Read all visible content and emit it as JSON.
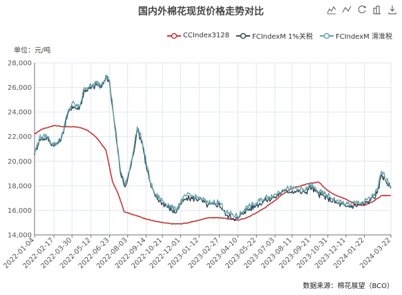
{
  "toolbox": {
    "icons": [
      "data-view-icon",
      "line-switch-icon",
      "restore-icon",
      "bar-switch-icon",
      "save-image-icon"
    ]
  },
  "unit_label": "单位：元/吨",
  "source_label": "数据来源：棉花展望（BCO）",
  "chart_data": {
    "type": "line",
    "title": "国内外棉花现货价格走势对比",
    "xlabel": "",
    "ylabel": "",
    "ylim": [
      14000,
      28000
    ],
    "y_ticks": [
      14000,
      16000,
      18000,
      20000,
      22000,
      24000,
      26000,
      28000
    ],
    "y_tick_labels": [
      "14,000",
      "16,000",
      "18,000",
      "20,000",
      "22,000",
      "24,000",
      "26,000",
      "28,000"
    ],
    "x_range": [
      "2022-01-04",
      "2024-03-22"
    ],
    "x_tick_labels": [
      "2022-01-04",
      "2022-02-17",
      "2022-03-30",
      "2022-05-12",
      "2022-06-23",
      "2022-08-03",
      "2022-09-14",
      "2022-10-21",
      "2022-12-01",
      "2023-01-12",
      "2023-02-27",
      "2023-04-10",
      "2023-05-22",
      "2023-07-03",
      "2023-08-11",
      "2023-09-21",
      "2023-10-31",
      "2023-12-11",
      "2024-01-22",
      "2024-03-22"
    ],
    "grid": true,
    "legend_position": "top-right",
    "series": [
      {
        "name": "CCIndex3128",
        "color": "#c23531",
        "x": [
          "2022-01-04",
          "2022-01-20",
          "2022-02-17",
          "2022-03-15",
          "2022-04-10",
          "2022-05-05",
          "2022-05-25",
          "2022-06-15",
          "2022-06-30",
          "2022-07-12",
          "2022-07-20",
          "2022-07-26",
          "2022-08-03",
          "2022-08-20",
          "2022-09-14",
          "2022-10-05",
          "2022-10-21",
          "2022-11-10",
          "2022-12-01",
          "2022-12-20",
          "2023-01-12",
          "2023-02-01",
          "2023-02-27",
          "2023-03-20",
          "2023-04-10",
          "2023-05-01",
          "2023-05-22",
          "2023-06-10",
          "2023-07-03",
          "2023-07-20",
          "2023-08-11",
          "2023-09-01",
          "2023-09-21",
          "2023-10-10",
          "2023-10-31",
          "2023-11-20",
          "2023-12-11",
          "2024-01-01",
          "2024-01-22",
          "2024-02-10",
          "2024-03-01",
          "2024-03-22"
        ],
        "values": [
          22200,
          22600,
          22900,
          22800,
          22800,
          22500,
          21900,
          20900,
          18300,
          17400,
          16600,
          15900,
          15800,
          15600,
          15300,
          15100,
          15000,
          14900,
          14900,
          15000,
          15200,
          15400,
          15400,
          15300,
          15200,
          15400,
          15800,
          16200,
          16800,
          17300,
          17800,
          18000,
          18200,
          18300,
          17600,
          17200,
          16900,
          16500,
          16400,
          16700,
          17200,
          17200
        ]
      },
      {
        "name": "FCIndexM 1%关税",
        "color": "#2f4554",
        "x": [
          "2022-01-04",
          "2022-01-15",
          "2022-02-01",
          "2022-02-17",
          "2022-03-05",
          "2022-03-20",
          "2022-03-30",
          "2022-04-15",
          "2022-04-28",
          "2022-05-12",
          "2022-05-25",
          "2022-06-05",
          "2022-06-15",
          "2022-06-23",
          "2022-07-05",
          "2022-07-18",
          "2022-07-28",
          "2022-08-03",
          "2022-08-15",
          "2022-08-25",
          "2022-09-05",
          "2022-09-14",
          "2022-09-25",
          "2022-10-05",
          "2022-10-21",
          "2022-11-05",
          "2022-11-20",
          "2022-12-01",
          "2022-12-15",
          "2023-01-12",
          "2023-02-01",
          "2023-02-27",
          "2023-03-15",
          "2023-04-10",
          "2023-04-25",
          "2023-05-22",
          "2023-06-10",
          "2023-07-03",
          "2023-07-20",
          "2023-08-11",
          "2023-08-25",
          "2023-09-10",
          "2023-09-21",
          "2023-10-10",
          "2023-10-31",
          "2023-11-20",
          "2023-12-11",
          "2024-01-01",
          "2024-01-22",
          "2024-02-05",
          "2024-02-20",
          "2024-03-01",
          "2024-03-12",
          "2024-03-22"
        ],
        "values": [
          20500,
          21800,
          21900,
          21200,
          21700,
          23800,
          24500,
          24200,
          25800,
          25900,
          26200,
          26000,
          26900,
          26400,
          22800,
          19000,
          17900,
          18500,
          20400,
          22600,
          21500,
          19700,
          17900,
          17100,
          16600,
          16200,
          15800,
          16500,
          17000,
          16900,
          16400,
          16500,
          15600,
          15300,
          15900,
          16400,
          16800,
          17100,
          17500,
          17600,
          17500,
          17400,
          17900,
          17300,
          17000,
          16600,
          16300,
          16400,
          16500,
          16800,
          17400,
          18900,
          18300,
          17800
        ]
      },
      {
        "name": "FCIndexM 滑准税",
        "color": "#61a0a8",
        "x": [
          "2022-01-04",
          "2022-01-15",
          "2022-02-01",
          "2022-02-17",
          "2022-03-05",
          "2022-03-20",
          "2022-03-30",
          "2022-04-15",
          "2022-04-28",
          "2022-05-12",
          "2022-05-25",
          "2022-06-05",
          "2022-06-15",
          "2022-06-23",
          "2022-07-05",
          "2022-07-18",
          "2022-07-28",
          "2022-08-03",
          "2022-08-15",
          "2022-08-25",
          "2022-09-05",
          "2022-09-14",
          "2022-09-25",
          "2022-10-05",
          "2022-10-21",
          "2022-11-05",
          "2022-11-20",
          "2022-12-01",
          "2022-12-15",
          "2023-01-12",
          "2023-02-01",
          "2023-02-27",
          "2023-03-15",
          "2023-04-10",
          "2023-04-25",
          "2023-05-22",
          "2023-06-10",
          "2023-07-03",
          "2023-07-20",
          "2023-08-11",
          "2023-08-25",
          "2023-09-10",
          "2023-09-21",
          "2023-10-10",
          "2023-10-31",
          "2023-11-20",
          "2023-12-11",
          "2024-01-01",
          "2024-01-22",
          "2024-02-05",
          "2024-02-20",
          "2024-03-01",
          "2024-03-12",
          "2024-03-22"
        ],
        "values": [
          20600,
          21900,
          22000,
          21300,
          21800,
          23900,
          24700,
          24400,
          26000,
          26100,
          26400,
          26200,
          27000,
          26600,
          23000,
          19200,
          18100,
          18700,
          20600,
          22800,
          21700,
          19900,
          18100,
          17300,
          16800,
          16400,
          16000,
          16700,
          17200,
          17100,
          16600,
          16700,
          15800,
          15500,
          16100,
          16600,
          17000,
          17300,
          17700,
          17800,
          17700,
          17600,
          18100,
          17500,
          17200,
          16800,
          16500,
          16600,
          16700,
          17000,
          17600,
          19200,
          18500,
          18000
        ]
      }
    ]
  }
}
